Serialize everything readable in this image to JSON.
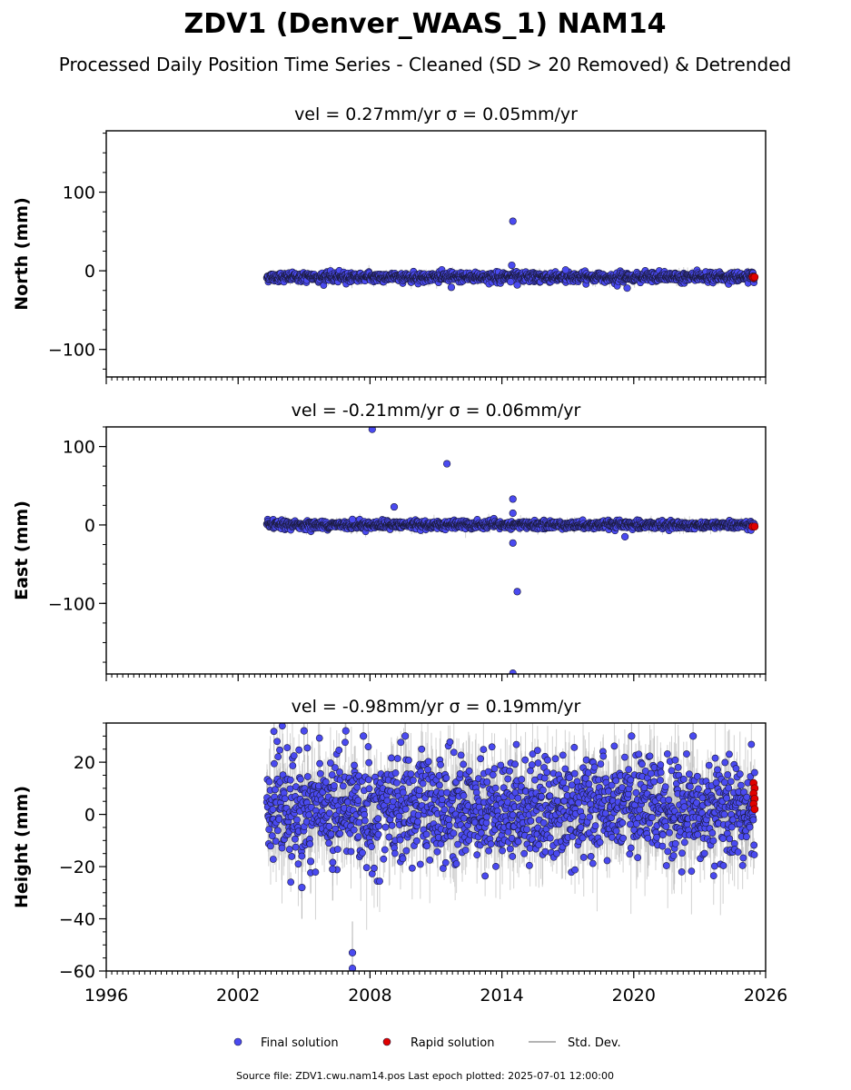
{
  "page": {
    "title": "ZDV1 (Denver_WAAS_1) NAM14",
    "subtitle": "Processed Daily Position Time Series - Cleaned (SD > 20 Removed) & Detrended",
    "footer": "Source file: ZDV1.cwu.nam14.pos  Last epoch plotted: 2025-07-01 12:00:00"
  },
  "colors": {
    "final": "#4a4af0",
    "rapid": "#e00000",
    "stddev": "#b4b4b4",
    "edge": "#1a1a3a"
  },
  "legend": {
    "final": "Final solution",
    "rapid": "Rapid solution",
    "stddev": "Std. Dev."
  },
  "chart_data": [
    {
      "type": "scatter",
      "title": "vel = 0.27mm/yr   σ = 0.05mm/yr",
      "xlabel": "",
      "ylabel": "North (mm)",
      "xlim": [
        1996,
        2026
      ],
      "ylim": [
        -135,
        178
      ],
      "xticks": [
        1996,
        2002,
        2008,
        2014,
        2020,
        2026
      ],
      "xtick_labels": [
        "",
        "",
        "",
        "",
        "",
        ""
      ],
      "yticks": [
        -100,
        0,
        100
      ],
      "ytick_labels": [
        "−100",
        "0",
        "100"
      ],
      "data_start": 2003.3,
      "data_end": 2025.5,
      "band": {
        "center": -8,
        "spread": 3,
        "sd": 3
      },
      "outliers": [
        {
          "x": 2014.5,
          "y": 63
        },
        {
          "x": 2014.45,
          "y": 7
        },
        {
          "x": 2016.9,
          "y": 1
        },
        {
          "x": 2011.7,
          "y": -21
        },
        {
          "x": 2014.4,
          "y": -14
        },
        {
          "x": 2014.7,
          "y": -18
        },
        {
          "x": 2019.7,
          "y": -22
        }
      ],
      "rapid": [
        {
          "x": 2025.4,
          "y": -8
        },
        {
          "x": 2025.45,
          "y": -9
        },
        {
          "x": 2025.5,
          "y": -8
        }
      ]
    },
    {
      "type": "scatter",
      "title": "vel = -0.21mm/yr   σ = 0.06mm/yr",
      "xlabel": "",
      "ylabel": "East (mm)",
      "xlim": [
        1996,
        2026
      ],
      "ylim": [
        -190,
        125
      ],
      "xticks": [
        1996,
        2002,
        2008,
        2014,
        2020,
        2026
      ],
      "xtick_labels": [
        "",
        "",
        "",
        "",
        "",
        ""
      ],
      "yticks": [
        -100,
        0,
        100
      ],
      "ytick_labels": [
        "−100",
        "0",
        "100"
      ],
      "data_start": 2003.3,
      "data_end": 2025.5,
      "band": {
        "center": 0,
        "spread": 2.5,
        "sd": 3
      },
      "outliers": [
        {
          "x": 2008.1,
          "y": 122
        },
        {
          "x": 2011.5,
          "y": 78
        },
        {
          "x": 2014.5,
          "y": 33
        },
        {
          "x": 2009.1,
          "y": 23
        },
        {
          "x": 2014.5,
          "y": 15
        },
        {
          "x": 2014.5,
          "y": -23
        },
        {
          "x": 2014.7,
          "y": -85
        },
        {
          "x": 2014.5,
          "y": -189
        },
        {
          "x": 2019.6,
          "y": -15
        },
        {
          "x": 2007.2,
          "y": 7
        }
      ],
      "rapid": [
        {
          "x": 2025.4,
          "y": -2
        },
        {
          "x": 2025.5,
          "y": -2
        }
      ]
    },
    {
      "type": "scatter",
      "title": "vel = -0.98mm/yr   σ = 0.19mm/yr",
      "xlabel": "",
      "ylabel": "Height (mm)",
      "xlim": [
        1996,
        2026
      ],
      "ylim": [
        -60,
        35
      ],
      "xticks": [
        1996,
        2002,
        2008,
        2014,
        2020,
        2026
      ],
      "xtick_labels": [
        "1996",
        "2002",
        "2008",
        "2014",
        "2020",
        "2026"
      ],
      "yticks": [
        -60,
        -40,
        -20,
        0,
        20
      ],
      "ytick_labels": [
        "−60",
        "−40",
        "−20",
        "0",
        "20"
      ],
      "data_start": 2003.3,
      "data_end": 2025.5,
      "band": {
        "center": 2,
        "spread": 10,
        "sd": 8
      },
      "outliers": [
        {
          "x": 2005.0,
          "y": 32
        },
        {
          "x": 2006.9,
          "y": 32
        },
        {
          "x": 2019.9,
          "y": 30
        },
        {
          "x": 2007.7,
          "y": 30
        },
        {
          "x": 2009.6,
          "y": 30
        },
        {
          "x": 2022.7,
          "y": 30
        },
        {
          "x": 2007.2,
          "y": -53
        },
        {
          "x": 2007.2,
          "y": -59
        },
        {
          "x": 2004.9,
          "y": -28
        },
        {
          "x": 2005.3,
          "y": -18
        },
        {
          "x": 2006.3,
          "y": -21
        }
      ],
      "rapid": [
        {
          "x": 2025.45,
          "y": 12
        },
        {
          "x": 2025.5,
          "y": 10
        },
        {
          "x": 2025.45,
          "y": 8
        },
        {
          "x": 2025.5,
          "y": 6
        },
        {
          "x": 2025.45,
          "y": 4
        },
        {
          "x": 2025.5,
          "y": 2
        }
      ]
    }
  ]
}
